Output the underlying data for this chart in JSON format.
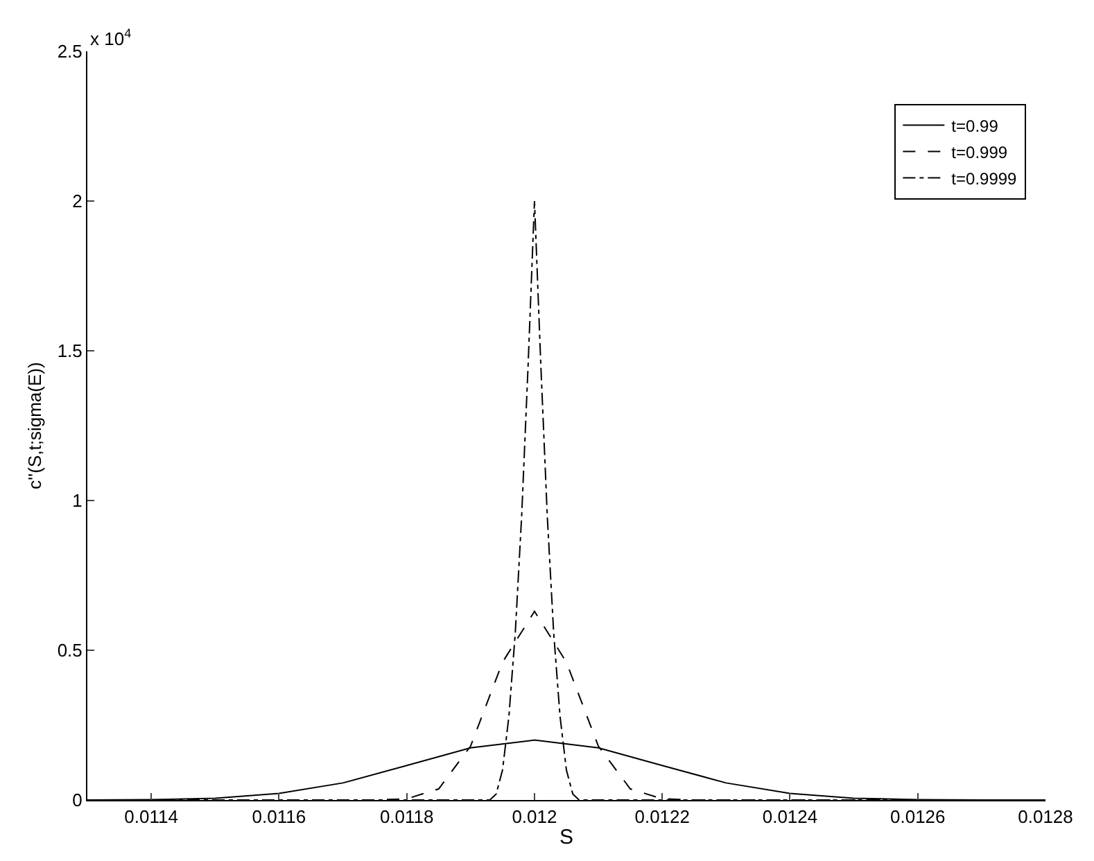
{
  "chart_data": {
    "type": "line",
    "xlabel": "S",
    "ylabel": "c''(S,t;sigma(E))",
    "annotations": [
      "x 10$^{4}$"
    ],
    "xlim": [
      0.0113,
      0.0128
    ],
    "xticks": [
      0.0114,
      0.0116,
      0.0118,
      0.012,
      0.0122,
      0.0124,
      0.0126,
      0.0128
    ],
    "ylim": [
      0,
      2.5
    ],
    "yticks": [
      0,
      0.5,
      1,
      1.5,
      2,
      2.5
    ],
    "grid": false,
    "legend": "top right",
    "marker": "none",
    "series": [
      {
        "name": "t=0.99",
        "color": "#000000",
        "line_style": "solid",
        "x": [
          0.0113,
          0.0114,
          0.0115,
          0.0116,
          0.0117,
          0.0118,
          0.0119,
          0.012,
          0.0121,
          0.0122,
          0.0123,
          0.0124,
          0.0125,
          0.0126,
          0.0127,
          0.0128
        ],
        "values": [
          0,
          0.001,
          0.006,
          0.022,
          0.057,
          0.115,
          0.174,
          0.2,
          0.174,
          0.115,
          0.057,
          0.022,
          0.006,
          0.001,
          0,
          0
        ]
      },
      {
        "name": "t=0.999",
        "color": "#000000",
        "line_style": "dashed",
        "x": [
          0.0113,
          0.01175,
          0.0118,
          0.01185,
          0.0119,
          0.01195,
          0.012,
          0.01205,
          0.0121,
          0.01215,
          0.0122,
          0.01225,
          0.0128
        ],
        "values": [
          0,
          0,
          0.004,
          0.037,
          0.18,
          0.46,
          0.63,
          0.46,
          0.18,
          0.037,
          0.004,
          0,
          0
        ]
      },
      {
        "name": "t=0.9999",
        "color": "#000000",
        "line_style": "dotted",
        "x": [
          0.0113,
          0.01193,
          0.01194,
          0.01195,
          0.01196,
          0.01197,
          0.01198,
          0.01199,
          0.012,
          0.01201,
          0.01202,
          0.01203,
          0.01204,
          0.01205,
          0.01206,
          0.01207,
          0.0128
        ],
        "values": [
          0,
          0,
          0.02,
          0.1,
          0.28,
          0.56,
          0.95,
          1.45,
          2.0,
          1.45,
          0.95,
          0.56,
          0.28,
          0.1,
          0.02,
          0,
          0
        ]
      }
    ]
  }
}
